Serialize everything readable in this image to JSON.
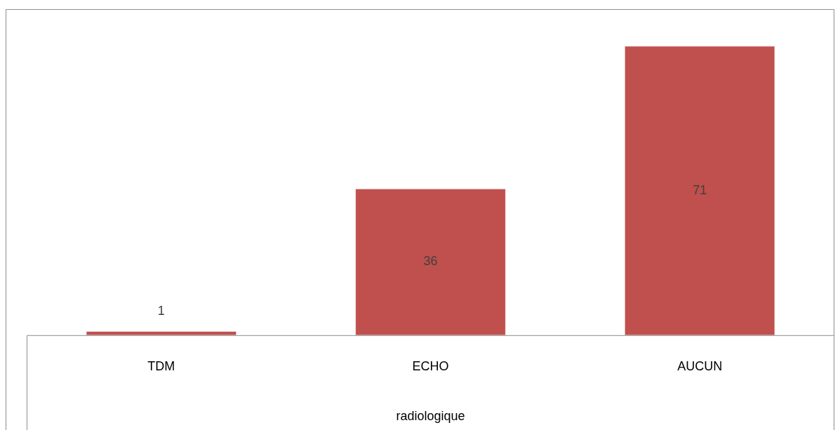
{
  "chart_data": {
    "type": "bar",
    "xlabel": "radiologique",
    "categories": [
      "TDM",
      "ECHO",
      "AUCUN"
    ],
    "values": [
      1,
      36,
      71
    ],
    "color": "#c0504d",
    "data_labels": true,
    "grid": false,
    "legend": false
  }
}
